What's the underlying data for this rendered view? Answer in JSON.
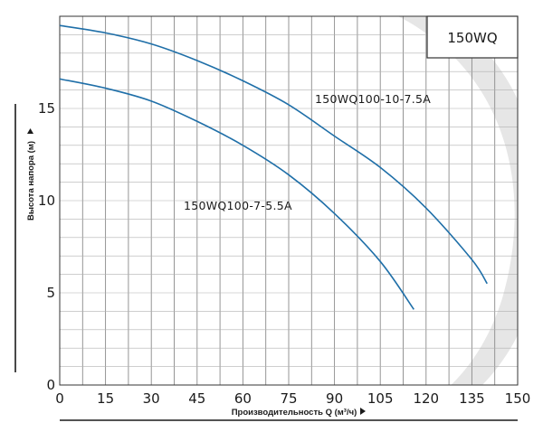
{
  "chart_data": {
    "type": "line",
    "title": "",
    "badge": "150WQ",
    "xlabel": "Производительность Q (м³/ч)",
    "ylabel": "Высота напора (м)",
    "xlim": [
      0,
      150
    ],
    "ylim": [
      0,
      20
    ],
    "xticks": [
      0,
      15,
      30,
      45,
      60,
      75,
      90,
      105,
      120,
      135,
      150
    ],
    "yticks": [
      0,
      5,
      10,
      15
    ],
    "grid": true,
    "line_color": "#1f6fa8",
    "series": [
      {
        "name": "150WQ100-10-7.5A",
        "x": [
          0,
          15,
          30,
          45,
          60,
          75,
          90,
          105,
          120,
          135,
          140
        ],
        "y": [
          19.5,
          19.1,
          18.5,
          17.6,
          16.5,
          15.2,
          13.5,
          11.8,
          9.6,
          6.8,
          5.5
        ]
      },
      {
        "name": "150WQ100-7-5.5A",
        "x": [
          0,
          15,
          30,
          45,
          60,
          75,
          90,
          105,
          116
        ],
        "y": [
          16.6,
          16.1,
          15.4,
          14.3,
          13.0,
          11.4,
          9.3,
          6.7,
          4.1
        ]
      }
    ]
  }
}
